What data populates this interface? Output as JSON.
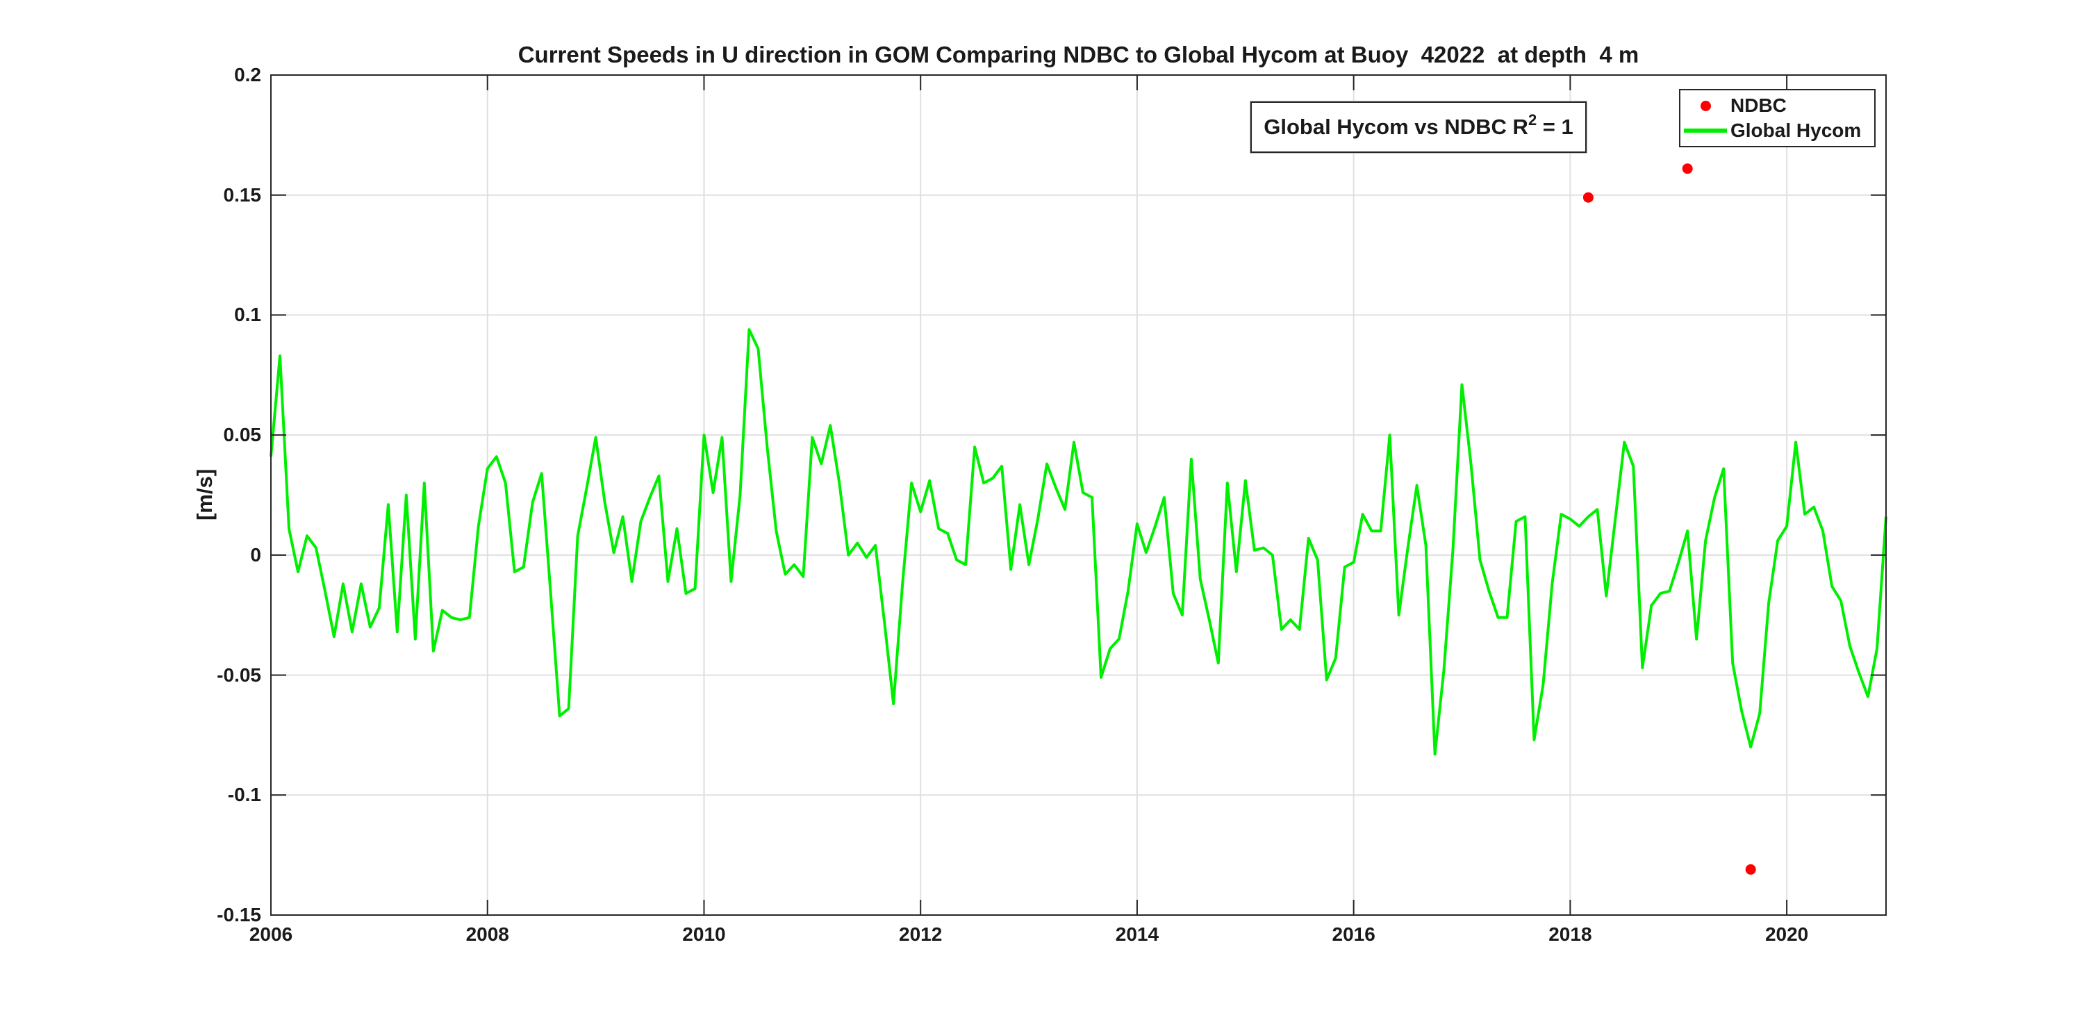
{
  "figure": {
    "title": "Current Speeds in U direction in GOM Comparing NDBC to Global Hycom at Buoy  42022  at depth  4 m"
  },
  "axes": {
    "ylabel": "[m/s]",
    "x_ticks": [
      {
        "value": 2006,
        "label": "2006"
      },
      {
        "value": 2008,
        "label": "2008"
      },
      {
        "value": 2010,
        "label": "2010"
      },
      {
        "value": 2012,
        "label": "2012"
      },
      {
        "value": 2014,
        "label": "2014"
      },
      {
        "value": 2016,
        "label": "2016"
      },
      {
        "value": 2018,
        "label": "2018"
      },
      {
        "value": 2020,
        "label": "2020"
      }
    ],
    "y_ticks": [
      {
        "value": 0.2,
        "label": "0.2"
      },
      {
        "value": 0.15,
        "label": "0.15"
      },
      {
        "value": 0.1,
        "label": "0.1"
      },
      {
        "value": 0.05,
        "label": "0.05"
      },
      {
        "value": 0,
        "label": "0"
      },
      {
        "value": -0.05,
        "label": "-0.05"
      },
      {
        "value": -0.1,
        "label": "-0.1"
      },
      {
        "value": -0.15,
        "label": "-0.15"
      }
    ]
  },
  "annotation": {
    "prefix": "Global Hycom vs NDBC R",
    "sup": "2",
    "suffix": " = 1"
  },
  "legend": {
    "items": [
      {
        "label": "NDBC",
        "marker": "dot",
        "color": "#ff0000"
      },
      {
        "label": "Global Hycom",
        "marker": "line",
        "color": "#00ef00"
      }
    ]
  },
  "chart_data": {
    "type": "line+scatter",
    "title": "Current Speeds in U direction in GOM Comparing NDBC to Global Hycom at Buoy  42022  at depth  4 m",
    "xlabel": "",
    "ylabel": "[m/s]",
    "xlim": [
      2006,
      2020.9167
    ],
    "ylim": [
      -0.15,
      0.2
    ],
    "grid": true,
    "grid_color": "#e0e0e0",
    "axis_color": "#262626",
    "legend_position": "top-right-inside",
    "series": [
      {
        "name": "NDBC",
        "type": "scatter",
        "color": "#ff0000",
        "marker_radius": 7.5,
        "points": [
          [
            2018.167,
            0.149
          ],
          [
            2019.083,
            0.161
          ],
          [
            2019.667,
            -0.131
          ]
        ]
      },
      {
        "name": "Global Hycom",
        "type": "line",
        "color": "#00ef00",
        "line_width": 4,
        "x_start": 2006,
        "x_step": 0.0833333,
        "values": [
          0.041,
          0.083,
          0.011,
          -0.007,
          0.008,
          0.003,
          -0.015,
          -0.034,
          -0.012,
          -0.032,
          -0.012,
          -0.03,
          -0.022,
          0.021,
          -0.032,
          0.025,
          -0.035,
          0.03,
          -0.04,
          -0.023,
          -0.026,
          -0.027,
          -0.026,
          0.012,
          0.036,
          0.041,
          0.03,
          -0.007,
          -0.005,
          0.022,
          0.034,
          -0.016,
          -0.067,
          -0.064,
          0.008,
          0.028,
          0.049,
          0.022,
          0.001,
          0.016,
          -0.011,
          0.014,
          0.024,
          0.033,
          -0.011,
          0.011,
          -0.016,
          -0.014,
          0.05,
          0.026,
          0.049,
          -0.011,
          0.025,
          0.094,
          0.086,
          0.045,
          0.01,
          -0.008,
          -0.004,
          -0.009,
          0.049,
          0.038,
          0.054,
          0.03,
          0.0,
          0.005,
          -0.001,
          0.004,
          -0.028,
          -0.062,
          -0.012,
          0.03,
          0.018,
          0.031,
          0.011,
          0.009,
          -0.002,
          -0.004,
          0.045,
          0.03,
          0.032,
          0.037,
          -0.006,
          0.021,
          -0.004,
          0.015,
          0.038,
          0.028,
          0.019,
          0.047,
          0.026,
          0.024,
          -0.051,
          -0.039,
          -0.035,
          -0.015,
          0.013,
          0.001,
          0.012,
          0.024,
          -0.016,
          -0.025,
          0.04,
          -0.01,
          -0.027,
          -0.045,
          0.03,
          -0.007,
          0.031,
          0.002,
          0.003,
          0.0,
          -0.031,
          -0.027,
          -0.031,
          0.007,
          -0.002,
          -0.052,
          -0.043,
          -0.005,
          -0.003,
          0.017,
          0.01,
          0.01,
          0.05,
          -0.025,
          0.003,
          0.029,
          0.004,
          -0.083,
          -0.048,
          0.002,
          0.071,
          0.038,
          -0.002,
          -0.015,
          -0.026,
          -0.026,
          0.014,
          0.016,
          -0.077,
          -0.054,
          -0.012,
          0.017,
          0.015,
          0.012,
          0.016,
          0.019,
          -0.017,
          0.015,
          0.047,
          0.037,
          -0.047,
          -0.021,
          -0.016,
          -0.015,
          -0.003,
          0.01,
          -0.035,
          0.006,
          0.024,
          0.036,
          -0.045,
          -0.065,
          -0.08,
          -0.066,
          -0.02,
          0.006,
          0.012,
          0.047,
          0.017,
          0.02,
          0.01,
          -0.013,
          -0.019,
          -0.038,
          -0.049,
          -0.059,
          -0.039,
          0.016
        ]
      }
    ]
  }
}
